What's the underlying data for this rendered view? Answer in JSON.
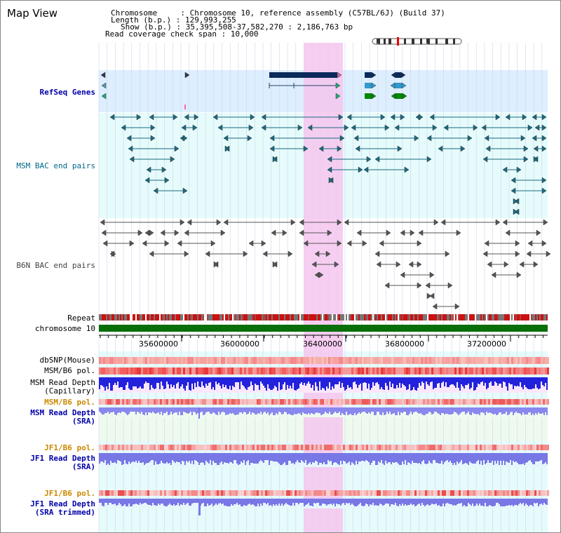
{
  "title": "Map View",
  "info": {
    "chromosome": "Chromosome     : Chromosome 10, reference assembly (C57BL/6J) (Build 37)",
    "length": "Length (b.p.) : 129,993,255",
    "show": "Show (b.p.) : 35,395,508-37,582,270 : 2,186,763 bp",
    "coverage": "Read coverage check span : 10,000"
  },
  "tracks": {
    "refseq": {
      "label": "RefSeq Genes",
      "color": "#0000aa"
    },
    "msm_bac": {
      "label": "MSM BAC end pairs",
      "color": "#006688"
    },
    "b6n_bac": {
      "label": "B6N BAC end pairs",
      "color": "#444444"
    },
    "repeat": {
      "label": "Repeat"
    },
    "chromosome": {
      "label": "chromosome 10",
      "color": "#006600"
    },
    "dbsnp": {
      "label": "dbSNP(Mouse)"
    },
    "msm_b6_pol": {
      "label": "MSM/B6 pol."
    },
    "msm_depth_cap": {
      "label1": "MSM Read Depth",
      "label2": "(Capillary)"
    },
    "msm_b6_pol2": {
      "label": "MSM/B6 pol.",
      "color": "#cc8800"
    },
    "msm_depth_sra": {
      "label1": "MSM Read Depth",
      "label2": "(SRA)",
      "color": "#0000aa"
    },
    "jf1_b6_pol": {
      "label": "JF1/B6 pol.",
      "color": "#cc8800"
    },
    "jf1_depth_sra": {
      "label1": "JF1 Read Depth",
      "label2": "(SRA)",
      "color": "#0000aa"
    },
    "jf1_b6_pol2": {
      "label": "JF1/B6 pol.",
      "color": "#cc8800"
    },
    "jf1_depth_trim": {
      "label1": "JF1 Read Depth",
      "label2": "(SRA trimmed)",
      "color": "#0000aa"
    }
  },
  "axis": {
    "ticks": [
      "35600000",
      "36000000",
      "36400000",
      "36800000",
      "37200000"
    ]
  },
  "colors": {
    "highlight": "#f5c6ee",
    "refseq_bg": "#ddeeff",
    "msm_bg": "#e6fbfb",
    "b6n_bg": "#ffffff",
    "grid": "#cfd6e6"
  }
}
